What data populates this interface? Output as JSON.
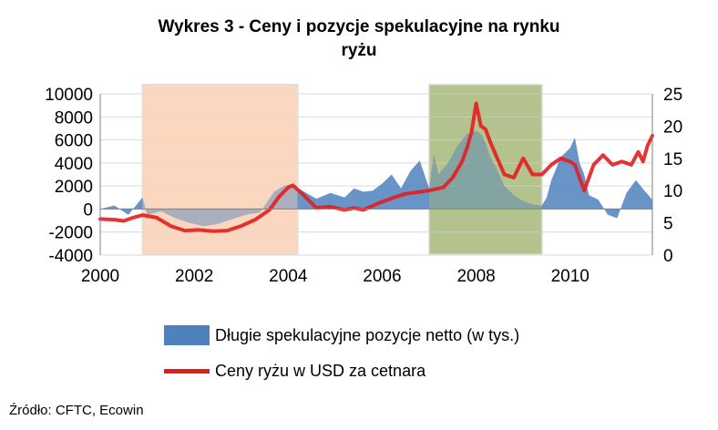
{
  "chart_data": {
    "type": "area+line",
    "title_line1": "Wykres 3 - Ceny i pozycje spekulacyjne na rynku",
    "title_line2": "ryżu",
    "x_ticks": [
      "2000",
      "2002",
      "2004",
      "2006",
      "2008",
      "2010"
    ],
    "y_left_ticks": [
      "10000",
      "8000",
      "6000",
      "4000",
      "2000",
      "0",
      "-2000",
      "-4000"
    ],
    "y_right_ticks": [
      "25",
      "20",
      "15",
      "10",
      "5",
      "0"
    ],
    "ylim_left": [
      -4000,
      10000
    ],
    "ylim_right": [
      0,
      25
    ],
    "xlim": [
      2000.0,
      2011.75
    ],
    "shaded_periods": [
      {
        "start": 2000.9,
        "end": 2004.2,
        "color": "#FAD7BE"
      },
      {
        "start": 2007.0,
        "end": 2009.4,
        "color": "#B4C48E"
      }
    ],
    "series": [
      {
        "name": "Długie spekulacyjne pozycje netto (w tys.)",
        "axis": "left",
        "kind": "area",
        "color": "#4F81BD",
        "x": [
          2000.0,
          2000.3,
          2000.6,
          2000.9,
          2001.0,
          2001.3,
          2001.6,
          2001.9,
          2002.2,
          2002.5,
          2002.8,
          2003.1,
          2003.4,
          2003.7,
          2003.9,
          2004.1,
          2004.2,
          2004.3,
          2004.6,
          2004.9,
          2005.2,
          2005.4,
          2005.6,
          2005.8,
          2006.0,
          2006.2,
          2006.4,
          2006.6,
          2006.8,
          2007.0,
          2007.1,
          2007.2,
          2007.4,
          2007.6,
          2007.8,
          2008.0,
          2008.1,
          2008.2,
          2008.3,
          2008.4,
          2008.6,
          2008.8,
          2009.0,
          2009.2,
          2009.4,
          2009.5,
          2009.6,
          2009.7,
          2009.8,
          2010.0,
          2010.1,
          2010.2,
          2010.3,
          2010.4,
          2010.6,
          2010.8,
          2011.0,
          2011.2,
          2011.4,
          2011.6,
          2011.75
        ],
        "values": [
          0,
          300,
          -500,
          1000,
          -500,
          -200,
          -800,
          -1200,
          -1500,
          -1300,
          -900,
          -500,
          -300,
          1500,
          2000,
          2200,
          1800,
          1600,
          900,
          1400,
          1000,
          1800,
          1500,
          1600,
          2200,
          3000,
          1800,
          3300,
          4200,
          1800,
          4800,
          3000,
          4000,
          5500,
          6500,
          6800,
          6500,
          5800,
          4500,
          3800,
          2000,
          1200,
          700,
          400,
          300,
          1000,
          2500,
          3500,
          4500,
          5300,
          6200,
          4000,
          3000,
          1200,
          800,
          -500,
          -800,
          1400,
          2500,
          1500,
          800
        ]
      },
      {
        "name": "Ceny ryżu w USD za cetnara",
        "axis": "right",
        "kind": "line",
        "color": "#E31E1E",
        "x": [
          2000.0,
          2000.3,
          2000.5,
          2000.7,
          2000.9,
          2001.2,
          2001.5,
          2001.8,
          2002.1,
          2002.4,
          2002.7,
          2003.0,
          2003.3,
          2003.6,
          2003.8,
          2004.0,
          2004.1,
          2004.3,
          2004.6,
          2004.9,
          2005.2,
          2005.4,
          2005.6,
          2005.9,
          2006.2,
          2006.5,
          2006.8,
          2007.0,
          2007.3,
          2007.5,
          2007.7,
          2007.8,
          2007.9,
          2008.0,
          2008.1,
          2008.2,
          2008.3,
          2008.45,
          2008.6,
          2008.8,
          2009.0,
          2009.2,
          2009.4,
          2009.6,
          2009.8,
          2010.0,
          2010.1,
          2010.3,
          2010.5,
          2010.7,
          2010.9,
          2011.1,
          2011.3,
          2011.45,
          2011.55,
          2011.65,
          2011.75
        ],
        "values": [
          5.6,
          5.5,
          5.3,
          5.8,
          6.2,
          5.8,
          4.5,
          3.8,
          3.9,
          3.7,
          3.8,
          4.5,
          5.5,
          7.0,
          9.0,
          10.5,
          10.8,
          9.5,
          7.3,
          7.5,
          7.0,
          7.3,
          7.0,
          8.0,
          8.8,
          9.5,
          9.8,
          10.0,
          10.5,
          12.0,
          14.5,
          16.5,
          19.0,
          23.5,
          20.0,
          19.5,
          17.5,
          15.0,
          12.5,
          12.0,
          15.0,
          12.5,
          12.5,
          14.0,
          15.0,
          14.5,
          14.0,
          10.0,
          14.0,
          15.5,
          14.0,
          14.5,
          14.0,
          16.0,
          14.5,
          17.0,
          18.5
        ]
      }
    ]
  },
  "source": "Źródło: CFTC, Ecowin",
  "style": {
    "grid": "#d9d9d9",
    "axis": "#7f7f7f"
  }
}
